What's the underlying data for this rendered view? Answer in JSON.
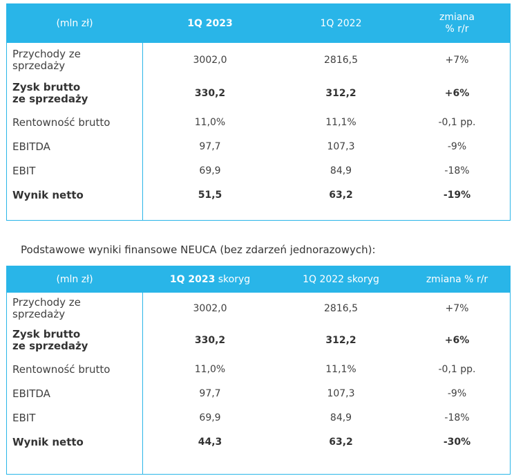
{
  "table1": {
    "header": {
      "unit": "(mln zł)",
      "col1": "1Q 2023",
      "col2": "1Q 2022",
      "col3_line1": "zmiana",
      "col3_line2": "% r/r"
    },
    "rows": [
      {
        "label_line1": "Przychody ze",
        "label_line2": "sprzedaży",
        "v1": "3002,0",
        "v2": "2816,5",
        "v3": "+7%"
      },
      {
        "label_line1": "Zysk brutto",
        "label_line2": "ze sprzedaży",
        "v1": "330,2",
        "v2": "312,2",
        "v3": "+6%"
      },
      {
        "label": "Rentowność brutto",
        "v1": "11,0%",
        "v2": "11,1%",
        "v3": "-0,1 pp."
      },
      {
        "label": "EBITDA",
        "v1": "97,7",
        "v2": "107,3",
        "v3": "-9%"
      },
      {
        "label": "EBIT",
        "v1": "69,9",
        "v2": "84,9",
        "v3": "-18%"
      },
      {
        "label": "Wynik netto",
        "v1": "51,5",
        "v2": "63,2",
        "v3": "-19%"
      }
    ]
  },
  "caption": "Podstawowe wyniki finansowe NEUCA (bez zdarzeń jednorazowych):",
  "table2": {
    "header": {
      "unit": "(mln zł)",
      "col1_bold": "1Q 2023",
      "col1_rest": " skoryg",
      "col2": "1Q 2022 skoryg",
      "col3": "zmiana % r/r"
    },
    "rows": [
      {
        "label_line1": "Przychody ze",
        "label_line2": "sprzedaży",
        "v1": "3002,0",
        "v2": "2816,5",
        "v3": "+7%"
      },
      {
        "label_line1": "Zysk brutto",
        "label_line2": "ze sprzedaży",
        "v1": "330,2",
        "v2": "312,2",
        "v3": "+6%"
      },
      {
        "label": "Rentowność brutto",
        "v1": "11,0%",
        "v2": "11,1%",
        "v3": "-0,1 pp."
      },
      {
        "label": "EBITDA",
        "v1": "97,7",
        "v2": "107,3",
        "v3": "-9%"
      },
      {
        "label": "EBIT",
        "v1": "69,9",
        "v2": "84,9",
        "v3": "-18%"
      },
      {
        "label": "Wynik netto",
        "v1": "44,3",
        "v2": "63,2",
        "v3": "-30%"
      }
    ]
  },
  "colors": {
    "accent": "#29b5e8"
  }
}
